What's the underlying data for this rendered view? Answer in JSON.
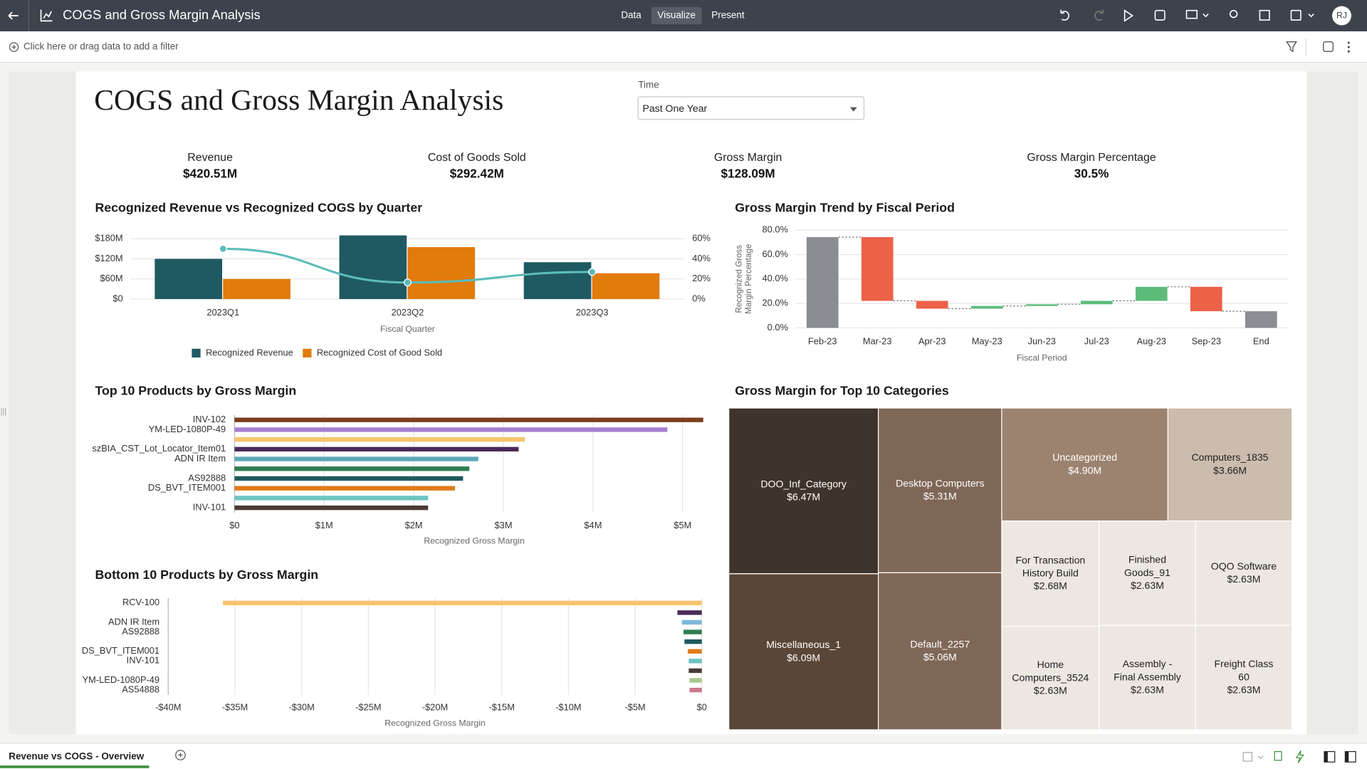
{
  "header": {
    "title": "COGS and Gross Margin Analysis",
    "tabs": [
      "Data",
      "Visualize",
      "Present"
    ],
    "user_initials": "RJ"
  },
  "filter_bar": {
    "placeholder": "Click here or drag data to add a filter"
  },
  "canvas": {
    "title": "COGS and Gross Margin Analysis",
    "time_filter": {
      "label": "Time",
      "value": "Past One Year"
    },
    "kpis": [
      {
        "label": "Revenue",
        "value": "$420.51M"
      },
      {
        "label": "Cost of Goods Sold",
        "value": "$292.42M"
      },
      {
        "label": "Gross Margin",
        "value": "$128.09M"
      },
      {
        "label": "Gross Margin Percentage",
        "value": "30.5%"
      }
    ]
  },
  "chart_data": [
    {
      "type": "combo",
      "title": "Recognized Revenue vs Recognized COGS by Quarter",
      "categories": [
        "2023Q1",
        "2023Q2",
        "2023Q3"
      ],
      "x_label": "Fiscal Quarter",
      "series": [
        {
          "name": "Recognized Revenue",
          "type": "bar",
          "color": "#1f5a63",
          "values": [
            120,
            190,
            110
          ]
        },
        {
          "name": "Recognized Cost of Good Sold",
          "type": "bar",
          "color": "#e07b0c",
          "values": [
            60,
            155,
            77
          ]
        },
        {
          "type": "line",
          "axis": "y2",
          "color": "#5bbcb8",
          "values": [
            50,
            16.5,
            27
          ]
        }
      ],
      "ylim": [
        0,
        203
      ],
      "yticks": [
        {
          "value": 0,
          "label": "$0"
        },
        {
          "value": 60,
          "label": "$60M"
        },
        {
          "value": 120,
          "label": "$120M"
        },
        {
          "value": 180,
          "label": "$180M"
        }
      ],
      "y2lim": [
        0,
        67.7
      ],
      "y2ticks": [
        {
          "value": 0,
          "label": "0%"
        },
        {
          "value": 20,
          "label": "20%"
        },
        {
          "value": 40,
          "label": "40%"
        },
        {
          "value": 60,
          "label": "60%"
        }
      ],
      "grid": true,
      "legend": "bottom"
    },
    {
      "type": "waterfall",
      "title": "Gross Margin Trend by Fiscal Period",
      "categories": [
        "Feb-23",
        "Mar-23",
        "Apr-23",
        "May-23",
        "Jun-23",
        "Jul-23",
        "Aug-23",
        "Sep-23",
        "End"
      ],
      "values": [
        74.3,
        -52.2,
        -6.4,
        2.2,
        1.4,
        2.8,
        11.5,
        -20.0,
        13.6
      ],
      "total_color": "#8a8d91",
      "increase_color": "#5dbb7a",
      "decrease_color": "#ec6148",
      "ylim": [
        0,
        80
      ],
      "yticks": [
        {
          "value": 0,
          "label": "0.0%"
        },
        {
          "value": 20,
          "label": "20.0%"
        },
        {
          "value": 40,
          "label": "40.0%"
        },
        {
          "value": 60,
          "label": "60.0%"
        },
        {
          "value": 80,
          "label": "80.0%"
        }
      ],
      "x_label": "Fiscal Period",
      "y_label": "Recognized Gross Margin Percentage",
      "grid": true
    },
    {
      "type": "hbar",
      "title": "Top 10 Products by Gross Margin",
      "categories": [
        "INV-102",
        "YM-LED-1080P-49",
        null,
        "szBIA_CST_Lot_Locator_Item01",
        "ADN IR Item",
        null,
        "AS92888",
        "DS_BVT_ITEM001",
        null,
        "INV-101"
      ],
      "values": [
        5.23,
        4.83,
        3.24,
        3.17,
        2.72,
        2.62,
        2.55,
        2.46,
        2.16,
        2.16
      ],
      "colors": [
        "#7b3f1f",
        "#a77fd1",
        "#f7c46c",
        "#4a2a5a",
        "#5fa8b8",
        "#2e7d4f",
        "#1f5a5f",
        "#e07b1a",
        "#6ec4c0",
        "#4a3a33"
      ],
      "xlim": [
        0,
        5.35
      ],
      "xticks": [
        {
          "value": 0,
          "label": "$0"
        },
        {
          "value": 1,
          "label": "$1M"
        },
        {
          "value": 2,
          "label": "$2M"
        },
        {
          "value": 3,
          "label": "$3M"
        },
        {
          "value": 4,
          "label": "$4M"
        },
        {
          "value": 5,
          "label": "$5M"
        }
      ],
      "x_label": "Recognized Gross Margin",
      "grid": true
    },
    {
      "type": "hbar",
      "title": "Bottom 10 Products by Gross Margin",
      "categories": [
        "RCV-100",
        null,
        "ADN IR Item",
        "AS92888",
        null,
        "DS_BVT_ITEM001",
        "INV-101",
        null,
        "YM-LED-1080P-49",
        "AS54888"
      ],
      "values": [
        -35.9,
        -1.83,
        -1.5,
        -1.37,
        -1.3,
        -1.05,
        -0.98,
        -0.98,
        -0.92,
        -0.92
      ],
      "colors": [
        "#f7c46c",
        "#4a2a5a",
        "#7fb8d9",
        "#2e7d4f",
        "#1f5a5f",
        "#e07b1a",
        "#6ec4c0",
        "#4a3a33",
        "#a5c98a",
        "#c97a8a"
      ],
      "xlim": [
        -40,
        0
      ],
      "xticks": [
        {
          "value": -40,
          "label": "-$40M"
        },
        {
          "value": -35,
          "label": "-$35M"
        },
        {
          "value": -30,
          "label": "-$30M"
        },
        {
          "value": -25,
          "label": "-$25M"
        },
        {
          "value": -20,
          "label": "-$20M"
        },
        {
          "value": -15,
          "label": "-$15M"
        },
        {
          "value": -10,
          "label": "-$10M"
        },
        {
          "value": -5,
          "label": "-$5M"
        },
        {
          "value": 0,
          "label": "$0"
        }
      ],
      "x_label": "Recognized Gross Margin",
      "grid": true
    },
    {
      "type": "treemap",
      "title": "Gross Margin for Top 10 Categories",
      "categories": [
        "DOO_Inf_Category",
        "Miscellaneous_1",
        "Desktop Computers",
        "Default_2257",
        "Uncategorized",
        "Computers_1835",
        "For Transaction History Build",
        "Home Computers_3524",
        "Finished Goods_91",
        "OQO Software",
        "Assembly - Final Assembly",
        "Freight Class 60"
      ],
      "values": [
        6.47,
        6.09,
        5.31,
        5.06,
        4.9,
        3.66,
        2.68,
        2.63,
        2.63,
        2.63,
        2.63,
        2.63
      ],
      "value_labels": [
        "$6.47M",
        "$6.09M",
        "$5.31M",
        "$5.06M",
        "$4.90M",
        "$3.66M",
        "$2.68M",
        "$2.63M",
        "$2.63M",
        "$2.63M",
        "$2.63M",
        "$2.63M"
      ],
      "colors": [
        "#3f342b",
        "#5a4636",
        "#7f6757",
        "#7f6757",
        "#9c8370",
        "#cbbcad",
        "#ede7e1",
        "#ede7e1",
        "#ede7e1",
        "#ede7e1",
        "#ede7e1",
        "#ede7e1"
      ]
    }
  ],
  "footer": {
    "tab": "Revenue vs COGS - Overview"
  }
}
